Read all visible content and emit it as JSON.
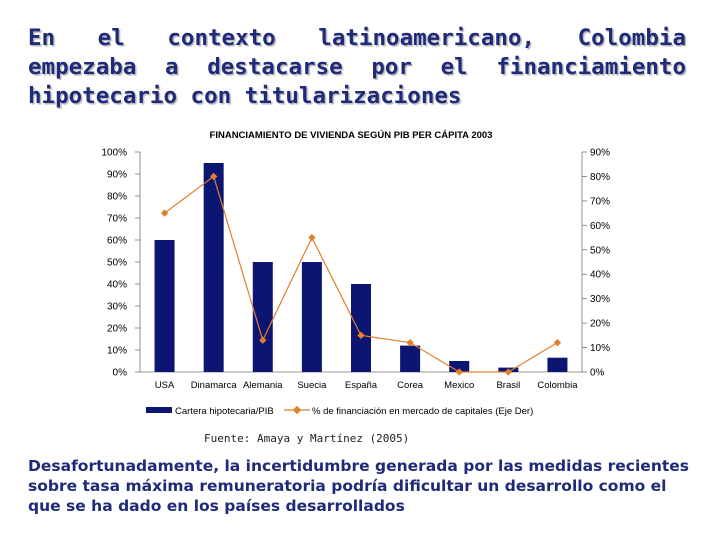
{
  "slide": {
    "title": "En el contexto latinoamericano, Colombia empezaba a destacarse por el financiamiento hipotecario con titularizaciones",
    "source": "Fuente: Amaya y Martínez (2005)",
    "conclusion": "Desafortunadamente, la incertidumbre generada por las medidas recientes sobre tasa máxima remuneratoria podría dificultar un desarrollo como el que se ha dado en los países desarrollados"
  },
  "colors": {
    "title": "#1f2a7a",
    "bar": "#0d1573",
    "line": "#e0802a"
  },
  "chart_data": {
    "type": "bar",
    "title": "FINANCIAMIENTO DE VIVIENDA SEGÚN PIB PER CÁPITA 2003",
    "categories": [
      "USA",
      "Dinamarca",
      "Alemania",
      "Suecia",
      "España",
      "Corea",
      "Mexico",
      "Brasil",
      "Colombia"
    ],
    "series": [
      {
        "name": "Cartera hipotecaria/PIB",
        "type": "bar",
        "axis": "left",
        "values": [
          60,
          95,
          50,
          50,
          40,
          12,
          5,
          2,
          6.5
        ]
      },
      {
        "name": "% de financiación en mercado de capitales (Eje Der)",
        "type": "line",
        "axis": "right",
        "values": [
          65,
          80,
          13,
          55,
          15,
          12,
          0,
          0,
          12
        ]
      }
    ],
    "left_axis": {
      "ylim": [
        0,
        100
      ],
      "ticks": [
        "0%",
        "10%",
        "20%",
        "30%",
        "40%",
        "50%",
        "60%",
        "70%",
        "80%",
        "90%",
        "100%"
      ]
    },
    "right_axis": {
      "ylim": [
        0,
        90
      ],
      "ticks": [
        "0%",
        "10%",
        "20%",
        "30%",
        "40%",
        "50%",
        "60%",
        "70%",
        "80%",
        "90%"
      ]
    },
    "legend_position": "bottom",
    "grid": false
  }
}
